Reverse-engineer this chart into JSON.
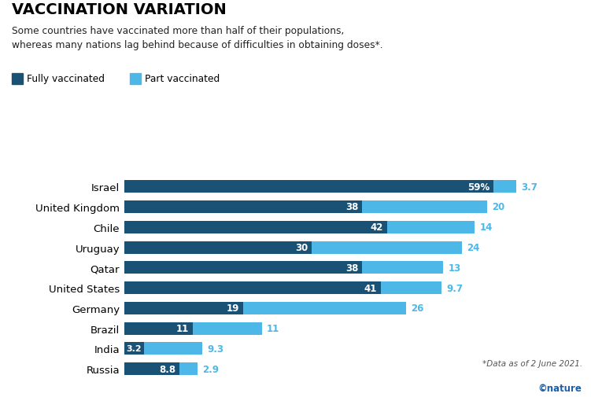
{
  "title": "VACCINATION VARIATION",
  "subtitle": "Some countries have vaccinated more than half of their populations,\nwhereas many nations lag behind because of difficulties in obtaining doses*.",
  "countries": [
    "Israel",
    "United Kingdom",
    "Chile",
    "Uruguay",
    "Qatar",
    "United States",
    "Germany",
    "Brazil",
    "India",
    "Russia"
  ],
  "fully_vaccinated": [
    59,
    38,
    42,
    30,
    38,
    41,
    19,
    11,
    3.2,
    8.8
  ],
  "part_vaccinated": [
    3.7,
    20,
    14,
    24,
    13,
    9.7,
    26,
    11,
    9.3,
    2.9
  ],
  "fully_labels": [
    "59%",
    "38",
    "42",
    "30",
    "38",
    "41",
    "19",
    "11",
    "3.2",
    "8.8"
  ],
  "part_labels": [
    "3.7",
    "20",
    "14",
    "24",
    "13",
    "9.7",
    "26",
    "11",
    "9.3",
    "2.9"
  ],
  "color_full": "#1a5276",
  "color_part": "#4db8e8",
  "footnote": "*Data as of 2 June 2021.",
  "watermark": "©nature",
  "legend_full": "Fully vaccinated",
  "legend_part": "Part vaccinated",
  "bar_height": 0.62,
  "xlim": [
    0,
    68
  ]
}
